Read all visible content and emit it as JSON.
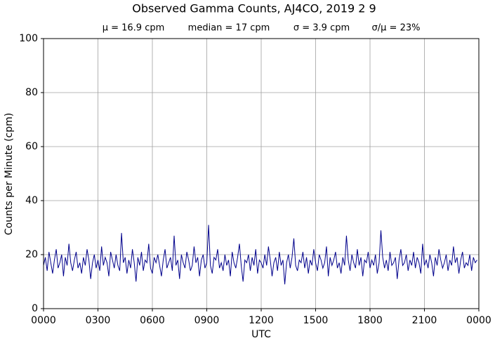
{
  "chart_data": {
    "type": "line",
    "title": "Observed Gamma Counts, AJ4CO, 2019 2 9",
    "subtitle": [
      "μ = 16.9 cpm",
      "median = 17 cpm",
      "σ = 3.9 cpm",
      "σ/μ = 23%"
    ],
    "xlabel": "UTC",
    "ylabel": "Counts per Minute (cpm)",
    "xlim": [
      0,
      1440
    ],
    "ylim": [
      0,
      100
    ],
    "xticks": [
      {
        "value": 0,
        "label": "0000"
      },
      {
        "value": 180,
        "label": "0300"
      },
      {
        "value": 360,
        "label": "0600"
      },
      {
        "value": 540,
        "label": "0900"
      },
      {
        "value": 720,
        "label": "1200"
      },
      {
        "value": 900,
        "label": "1500"
      },
      {
        "value": 1080,
        "label": "1800"
      },
      {
        "value": 1260,
        "label": "2100"
      },
      {
        "value": 1440,
        "label": "0000"
      }
    ],
    "yticks": [
      0,
      20,
      40,
      60,
      80,
      100
    ],
    "grid": true,
    "x": [
      0,
      6,
      12,
      18,
      24,
      30,
      36,
      42,
      48,
      54,
      60,
      66,
      72,
      78,
      84,
      90,
      96,
      102,
      108,
      114,
      120,
      126,
      132,
      138,
      144,
      150,
      156,
      162,
      168,
      174,
      180,
      186,
      192,
      198,
      204,
      210,
      216,
      222,
      228,
      234,
      240,
      246,
      252,
      258,
      264,
      270,
      276,
      282,
      288,
      294,
      300,
      306,
      312,
      318,
      324,
      330,
      336,
      342,
      348,
      354,
      360,
      366,
      372,
      378,
      384,
      390,
      396,
      402,
      408,
      414,
      420,
      426,
      432,
      438,
      444,
      450,
      456,
      462,
      468,
      474,
      480,
      486,
      492,
      498,
      504,
      510,
      516,
      522,
      528,
      534,
      540,
      546,
      552,
      558,
      564,
      570,
      576,
      582,
      588,
      594,
      600,
      606,
      612,
      618,
      624,
      630,
      636,
      642,
      648,
      654,
      660,
      666,
      672,
      678,
      684,
      690,
      696,
      702,
      708,
      714,
      720,
      726,
      732,
      738,
      744,
      750,
      756,
      762,
      768,
      774,
      780,
      786,
      792,
      798,
      804,
      810,
      816,
      822,
      828,
      834,
      840,
      846,
      852,
      858,
      864,
      870,
      876,
      882,
      888,
      894,
      900,
      906,
      912,
      918,
      924,
      930,
      936,
      942,
      948,
      954,
      960,
      966,
      972,
      978,
      984,
      990,
      996,
      1002,
      1008,
      1014,
      1020,
      1026,
      1032,
      1038,
      1044,
      1050,
      1056,
      1062,
      1068,
      1074,
      1080,
      1086,
      1092,
      1098,
      1104,
      1110,
      1116,
      1122,
      1128,
      1134,
      1140,
      1146,
      1152,
      1158,
      1164,
      1170,
      1176,
      1182,
      1188,
      1194,
      1200,
      1206,
      1212,
      1218,
      1224,
      1230,
      1236,
      1242,
      1248,
      1254,
      1260,
      1266,
      1272,
      1278,
      1284,
      1290,
      1296,
      1302,
      1308,
      1314,
      1320,
      1326,
      1332,
      1338,
      1344,
      1350,
      1356,
      1362,
      1368,
      1374,
      1380,
      1386,
      1392,
      1398,
      1404,
      1410,
      1416,
      1422,
      1428,
      1434
    ],
    "series": [
      {
        "color": "#00008b",
        "values": [
          16,
          19,
          14,
          21,
          17,
          13,
          18,
          22,
          15,
          17,
          20,
          12,
          19,
          16,
          24,
          17,
          14,
          18,
          21,
          15,
          17,
          13,
          19,
          16,
          22,
          18,
          11,
          17,
          20,
          15,
          18,
          14,
          23,
          16,
          19,
          17,
          12,
          21,
          18,
          15,
          20,
          16,
          14,
          28,
          17,
          19,
          13,
          18,
          15,
          22,
          17,
          10,
          19,
          16,
          21,
          14,
          18,
          17,
          24,
          15,
          13,
          19,
          17,
          20,
          16,
          12,
          18,
          22,
          15,
          17,
          19,
          14,
          27,
          16,
          18,
          11,
          20,
          17,
          15,
          21,
          18,
          14,
          16,
          23,
          17,
          19,
          12,
          18,
          20,
          15,
          17,
          31,
          16,
          13,
          19,
          18,
          22,
          15,
          17,
          14,
          20,
          16,
          18,
          12,
          21,
          17,
          15,
          19,
          24,
          16,
          10,
          18,
          17,
          20,
          14,
          19,
          16,
          22,
          13,
          18,
          17,
          15,
          20,
          16,
          23,
          18,
          12,
          17,
          19,
          14,
          21,
          16,
          18,
          9,
          17,
          20,
          15,
          19,
          26,
          16,
          14,
          18,
          17,
          21,
          15,
          19,
          13,
          18,
          16,
          22,
          17,
          14,
          20,
          18,
          15,
          17,
          23,
          12,
          19,
          16,
          18,
          21,
          15,
          17,
          13,
          19,
          16,
          27,
          18,
          14,
          20,
          17,
          15,
          22,
          16,
          19,
          12,
          18,
          17,
          21,
          15,
          18,
          16,
          20,
          13,
          17,
          29,
          19,
          15,
          18,
          14,
          21,
          16,
          17,
          19,
          11,
          18,
          22,
          16,
          17,
          20,
          14,
          18,
          16,
          21,
          15,
          19,
          17,
          13,
          24,
          16,
          18,
          15,
          20,
          17,
          12,
          19,
          16,
          22,
          18,
          15,
          17,
          20,
          14,
          18,
          16,
          23,
          17,
          19,
          13,
          18,
          21,
          15,
          17,
          16,
          20,
          14,
          19,
          17,
          18
        ]
      }
    ]
  }
}
